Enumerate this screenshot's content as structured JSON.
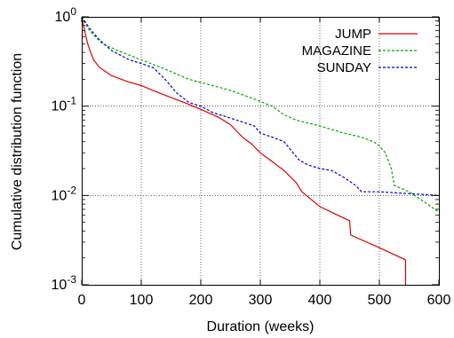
{
  "chart_data": {
    "type": "line",
    "title": "",
    "xlabel": "Duration (weeks)",
    "ylabel": "Cumulative distribution function",
    "xlim": [
      0,
      600
    ],
    "ylim": [
      0.001,
      1
    ],
    "yscale": "log",
    "grid": true,
    "legend_position": "top-right",
    "x_ticks": [
      {
        "value": 0,
        "label": "0"
      },
      {
        "value": 100,
        "label": "100"
      },
      {
        "value": 200,
        "label": "200"
      },
      {
        "value": 300,
        "label": "300"
      },
      {
        "value": 400,
        "label": "400"
      },
      {
        "value": 500,
        "label": "500"
      },
      {
        "value": 600,
        "label": "600"
      }
    ],
    "y_ticks": [
      {
        "value": 1,
        "base": "10",
        "exp": "0"
      },
      {
        "value": 0.1,
        "base": "10",
        "exp": "-1"
      },
      {
        "value": 0.01,
        "base": "10",
        "exp": "-2"
      },
      {
        "value": 0.001,
        "base": "10",
        "exp": "-3"
      }
    ],
    "series": [
      {
        "name": "JUMP",
        "color": "#dd0000",
        "dash": "solid",
        "points": [
          [
            0,
            1.0
          ],
          [
            5,
            0.7
          ],
          [
            10,
            0.5
          ],
          [
            15,
            0.4
          ],
          [
            20,
            0.33
          ],
          [
            30,
            0.27
          ],
          [
            50,
            0.22
          ],
          [
            75,
            0.19
          ],
          [
            100,
            0.17
          ],
          [
            125,
            0.145
          ],
          [
            150,
            0.125
          ],
          [
            175,
            0.108
          ],
          [
            200,
            0.092
          ],
          [
            230,
            0.075
          ],
          [
            250,
            0.062
          ],
          [
            270,
            0.045
          ],
          [
            285,
            0.038
          ],
          [
            300,
            0.03
          ],
          [
            320,
            0.024
          ],
          [
            340,
            0.019
          ],
          [
            360,
            0.014
          ],
          [
            370,
            0.011
          ],
          [
            400,
            0.0075
          ],
          [
            450,
            0.0052
          ],
          [
            452,
            0.0036
          ],
          [
            500,
            0.0026
          ],
          [
            544,
            0.0019
          ],
          [
            544,
            0.001
          ]
        ]
      },
      {
        "name": "MAGAZINE",
        "color": "#00aa00",
        "dash": "dashed",
        "points": [
          [
            0,
            1.0
          ],
          [
            10,
            0.75
          ],
          [
            20,
            0.62
          ],
          [
            35,
            0.5
          ],
          [
            60,
            0.42
          ],
          [
            100,
            0.33
          ],
          [
            140,
            0.26
          ],
          [
            180,
            0.2
          ],
          [
            220,
            0.17
          ],
          [
            250,
            0.15
          ],
          [
            290,
            0.12
          ],
          [
            320,
            0.1
          ],
          [
            340,
            0.08
          ],
          [
            360,
            0.07
          ],
          [
            400,
            0.06
          ],
          [
            440,
            0.05
          ],
          [
            470,
            0.045
          ],
          [
            490,
            0.04
          ],
          [
            500,
            0.036
          ],
          [
            510,
            0.03
          ],
          [
            520,
            0.02
          ],
          [
            525,
            0.013
          ],
          [
            550,
            0.011
          ],
          [
            575,
            0.0085
          ],
          [
            600,
            0.0065
          ]
        ]
      },
      {
        "name": "SUNDAY",
        "color": "#0000cc",
        "dash": "dashed",
        "points": [
          [
            0,
            1.0
          ],
          [
            15,
            0.72
          ],
          [
            30,
            0.55
          ],
          [
            50,
            0.42
          ],
          [
            80,
            0.33
          ],
          [
            100,
            0.3
          ],
          [
            120,
            0.27
          ],
          [
            140,
            0.2
          ],
          [
            160,
            0.14
          ],
          [
            180,
            0.11
          ],
          [
            200,
            0.1
          ],
          [
            220,
            0.085
          ],
          [
            260,
            0.07
          ],
          [
            290,
            0.06
          ],
          [
            300,
            0.05
          ],
          [
            320,
            0.045
          ],
          [
            340,
            0.04
          ],
          [
            350,
            0.033
          ],
          [
            365,
            0.025
          ],
          [
            380,
            0.022
          ],
          [
            400,
            0.02
          ],
          [
            420,
            0.019
          ],
          [
            440,
            0.016
          ],
          [
            460,
            0.013
          ],
          [
            470,
            0.011
          ],
          [
            500,
            0.011
          ],
          [
            600,
            0.01
          ]
        ]
      }
    ]
  }
}
